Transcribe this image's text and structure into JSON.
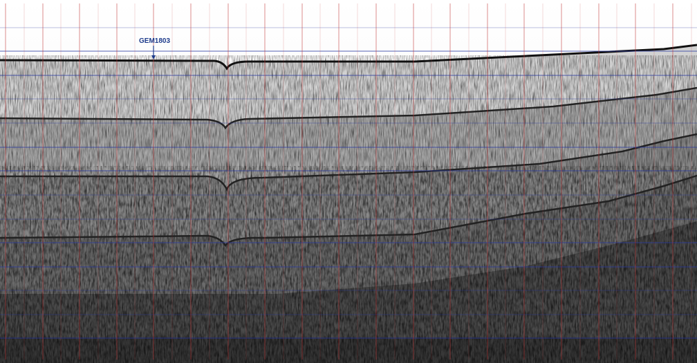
{
  "annotation": {
    "label": "GEM1803"
  }
}
